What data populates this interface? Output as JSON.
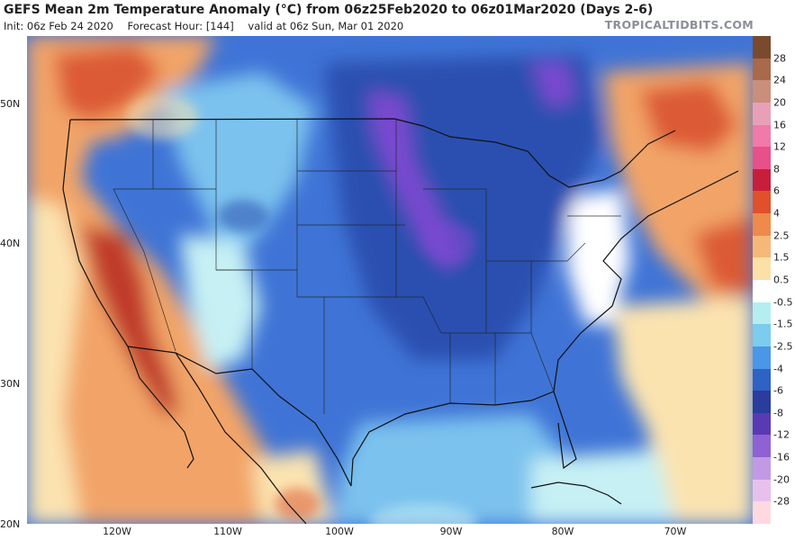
{
  "header": {
    "title": "GEFS Mean 2m Temperature Anomaly (°C) from 06z25Feb2020 to 06z01Mar2020 (Days 2-6)",
    "init": "Init: 06z Feb 24 2020",
    "forecast_hour": "Forecast Hour: [144]",
    "valid": "valid at 06z Sun, Mar 01 2020",
    "brand": "TROPICALTIDBITS.COM"
  },
  "axes": {
    "lat_labels": [
      "50N",
      "40N",
      "30N",
      "20N"
    ],
    "lon_labels": [
      "120W",
      "110W",
      "100W",
      "90W",
      "80W",
      "70W"
    ]
  },
  "colorbar": {
    "labels": [
      "28",
      "24",
      "20",
      "16",
      "12",
      "8",
      "6",
      "4",
      "2.5",
      "1.5",
      "0.5",
      "-0.5",
      "-1.5",
      "-2.5",
      "-4",
      "-6",
      "-8",
      "-12",
      "-16",
      "-20",
      "-28"
    ],
    "colors": [
      "#7a4a2e",
      "#a86a4a",
      "#c98f7a",
      "#e8a0b8",
      "#f07aa8",
      "#e8508a",
      "#c81e3c",
      "#e0502a",
      "#ee8a4a",
      "#f6b878",
      "#fbe0a8",
      "#ffffff",
      "#b4eef0",
      "#7cccee",
      "#4a96e8",
      "#2e62c4",
      "#2a3c9c",
      "#5a3ab4",
      "#8e62d4",
      "#c29ae4",
      "#e8c0ee",
      "#ffd8e0"
    ]
  },
  "colors": {
    "cold_core": "#7a4ad0",
    "deep_blue": "#2c4fb0",
    "mid_blue": "#3f74d6",
    "light_blue": "#7cc2ee",
    "pale_cyan": "#c6f0f4",
    "neutral": "#ffffff",
    "pale_warm": "#fbe3b0",
    "warm": "#f2a468",
    "hot": "#dc5a36",
    "hotter": "#c03a2a"
  }
}
